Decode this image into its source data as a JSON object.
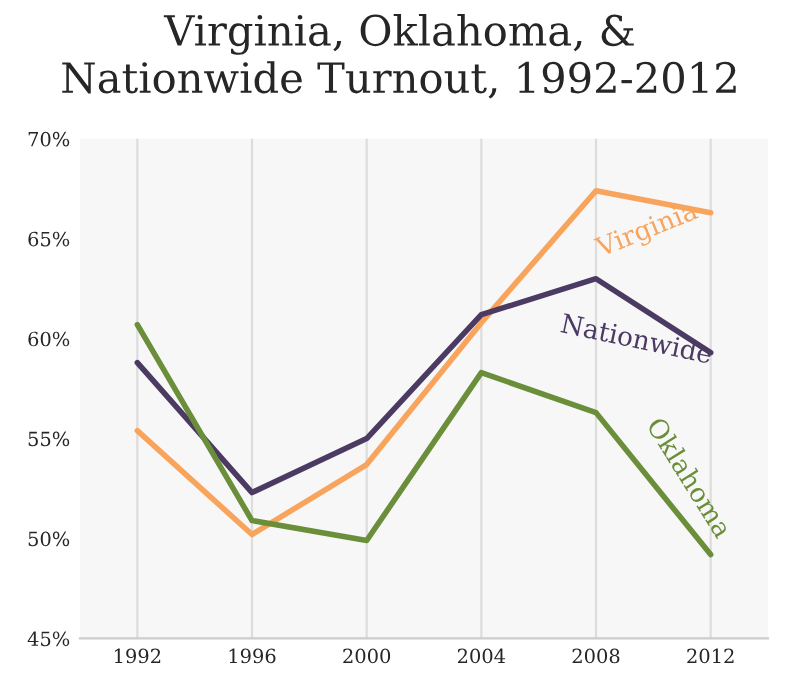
{
  "chart_data": {
    "type": "line",
    "title": "Virginia, Oklahoma, &\nNationwide Turnout, 1992-2012",
    "categories": [
      "1992",
      "1996",
      "2000",
      "2004",
      "2008",
      "2012"
    ],
    "series": [
      {
        "name": "Virginia",
        "color": "#f8a45c",
        "values": [
          55.4,
          50.2,
          53.7,
          60.8,
          67.4,
          66.3
        ]
      },
      {
        "name": "Nationwide",
        "color": "#4b3a62",
        "values": [
          58.8,
          52.3,
          55.0,
          61.2,
          63.0,
          59.3
        ]
      },
      {
        "name": "Oklahoma",
        "color": "#6b8e3a",
        "values": [
          60.7,
          50.9,
          49.9,
          58.3,
          56.3,
          49.2
        ]
      }
    ],
    "ylim": [
      45,
      70
    ],
    "yticks": [
      {
        "value": 45,
        "label": "45%"
      },
      {
        "value": 50,
        "label": "50%"
      },
      {
        "value": 55,
        "label": "55%"
      },
      {
        "value": 60,
        "label": "60%"
      },
      {
        "value": 65,
        "label": "65%"
      },
      {
        "value": 70,
        "label": "70%"
      }
    ],
    "grid": "x",
    "legend": false,
    "marker": "none",
    "line_style": "solid"
  }
}
